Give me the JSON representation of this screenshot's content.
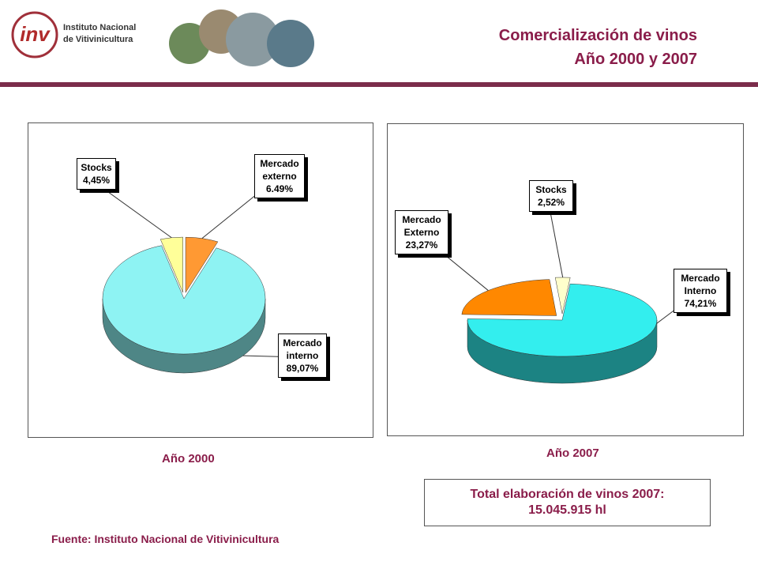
{
  "header": {
    "logo_mark": "inv",
    "logo_line1": "Instituto Nacional",
    "logo_line2": "de Vitivinicultura",
    "title_line1": "Comercialización de vinos",
    "title_line2": "Año 2000 y 2007"
  },
  "chart_data": [
    {
      "type": "pie",
      "title": "Año 2000",
      "categories": [
        "Stocks",
        "Mercado externo",
        "Mercado interno"
      ],
      "values": [
        4.45,
        6.49,
        89.07
      ],
      "value_labels": [
        "4,45%",
        "6.49%",
        "89,07%"
      ],
      "colors": [
        "#ffff99",
        "#ff9933",
        "#8ef3f3"
      ]
    },
    {
      "type": "pie",
      "title": "Año 2007",
      "categories": [
        "Mercado Externo",
        "Stocks",
        "Mercado Interno"
      ],
      "values": [
        23.27,
        2.52,
        74.21
      ],
      "value_labels": [
        "23,27%",
        "2,52%",
        "74,21%"
      ],
      "colors": [
        "#ff8800",
        "#ffffcc",
        "#33eeee"
      ]
    }
  ],
  "total": {
    "line1": "Total elaboración de vinos 2007:",
    "line2": "15.045.915 hl"
  },
  "source": "Fuente: Instituto Nacional de Vitivinicultura"
}
